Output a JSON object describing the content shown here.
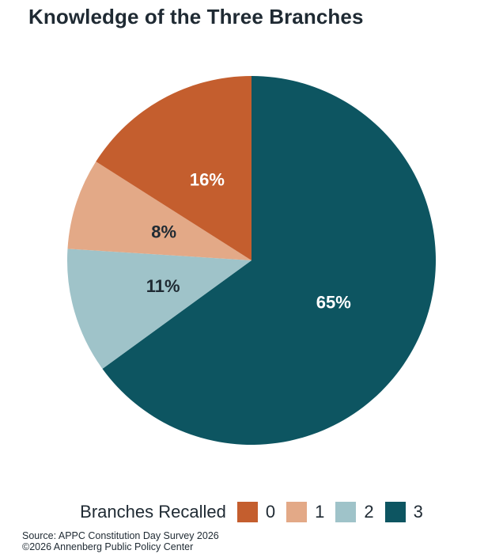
{
  "chart_data": {
    "type": "pie",
    "title": "Knowledge of the Three Branches",
    "legend_title": "Branches Recalled",
    "legend_position": "bottom",
    "categories": [
      "0",
      "1",
      "2",
      "3"
    ],
    "values": [
      16,
      8,
      11,
      65
    ],
    "value_labels": [
      "16%",
      "8%",
      "11%",
      "65%"
    ],
    "colors": [
      "#c45e2e",
      "#e3a987",
      "#9fc3c9",
      "#0d5561"
    ],
    "label_colors": [
      "#ffffff",
      "#1f2a33",
      "#1f2a33",
      "#ffffff"
    ]
  },
  "footer": {
    "source": "Source: APPC Constitution Day Survey 2026",
    "copyright": "©2026 Annenberg Public Policy Center"
  }
}
